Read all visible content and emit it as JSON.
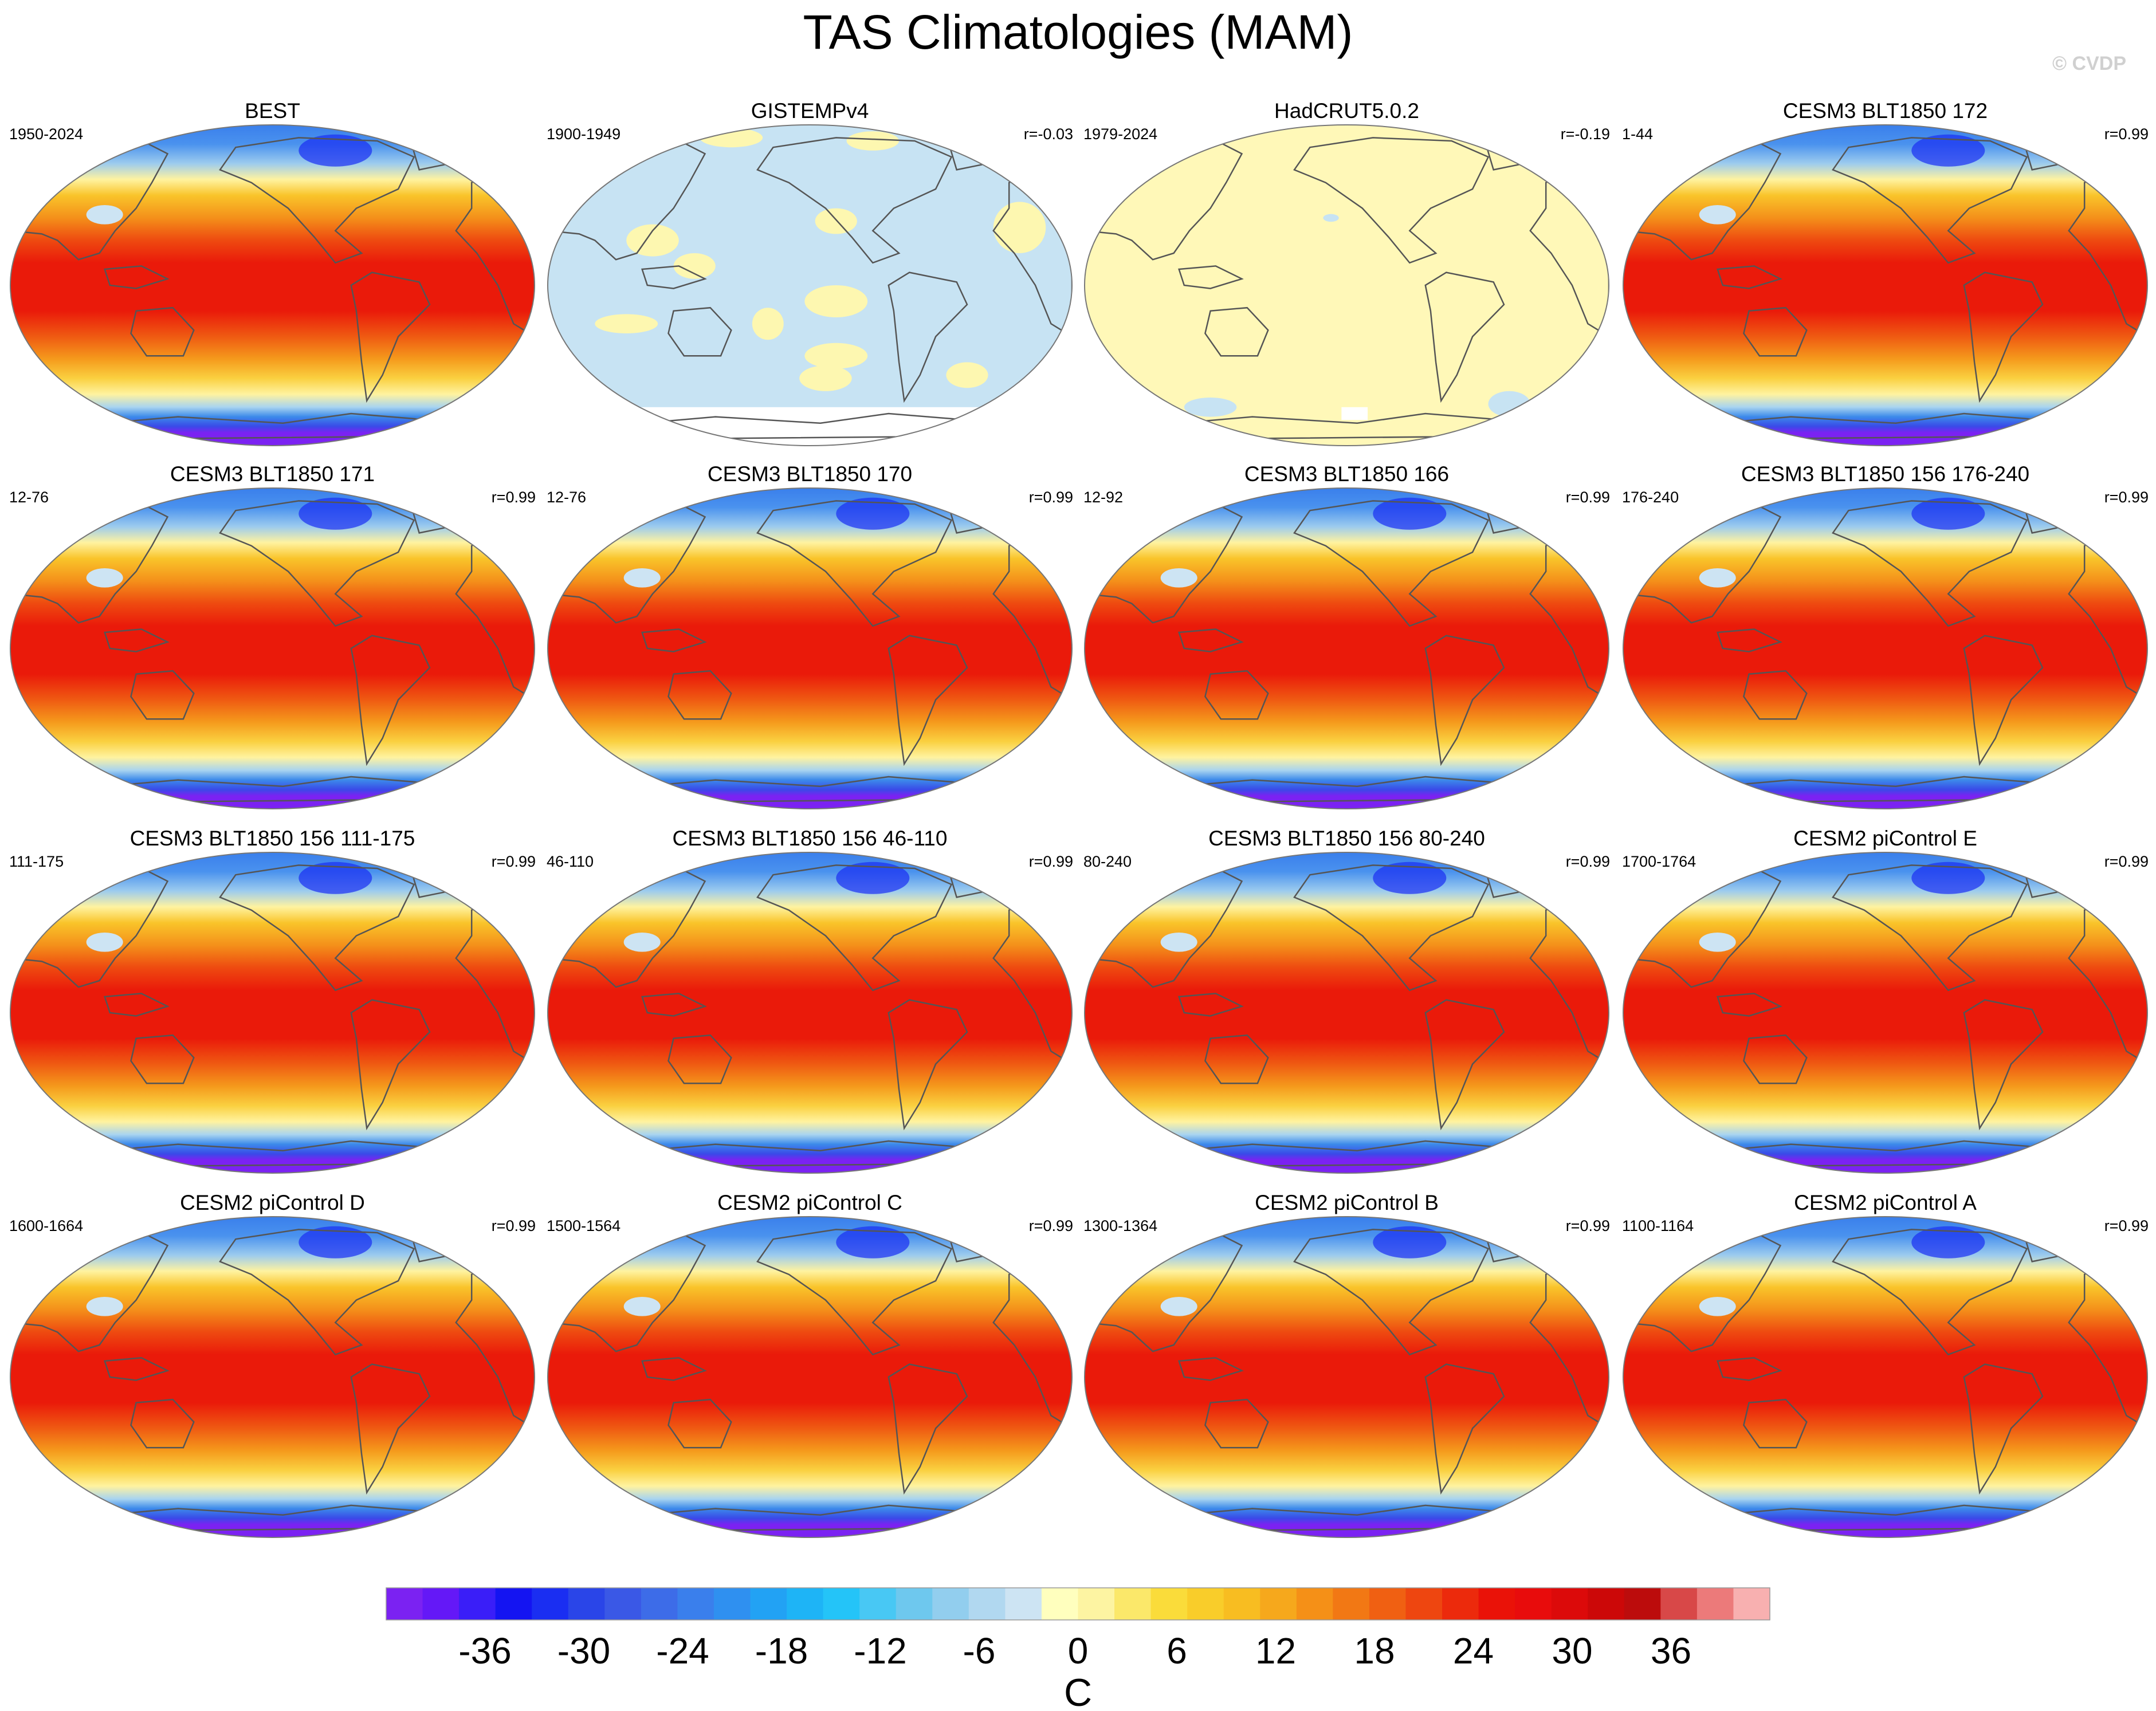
{
  "title": "TAS Climatologies (MAM)",
  "watermark": "© CVDP",
  "colors": {
    "land_outline": "#555555",
    "gistemp_blue": "#c7e3f3",
    "gistemp_yellow": "#fdf7b0",
    "hadcrut_yellow": "#fff8b8"
  },
  "chart_data": {
    "type": "heatmap",
    "projection": "robinson-global-pacific-centered",
    "panels": [
      {
        "title": "BEST",
        "period": "1950-2024",
        "r": "",
        "style": "climatology"
      },
      {
        "title": "GISTEMPv4",
        "period": "1900-1949",
        "r": "r=-0.03",
        "style": "gistemp"
      },
      {
        "title": "HadCRUT5.0.2",
        "period": "1979-2024",
        "r": "r=-0.19",
        "style": "hadcrut"
      },
      {
        "title": "CESM3 BLT1850 172",
        "period": "1-44",
        "r": "r=0.99",
        "style": "climatology"
      },
      {
        "title": "CESM3 BLT1850 171",
        "period": "12-76",
        "r": "r=0.99",
        "style": "climatology"
      },
      {
        "title": "CESM3 BLT1850 170",
        "period": "12-76",
        "r": "r=0.99",
        "style": "climatology"
      },
      {
        "title": "CESM3 BLT1850 166",
        "period": "12-92",
        "r": "r=0.99",
        "style": "climatology"
      },
      {
        "title": "CESM3 BLT1850 156 176-240",
        "period": "176-240",
        "r": "r=0.99",
        "style": "climatology"
      },
      {
        "title": "CESM3 BLT1850 156 111-175",
        "period": "111-175",
        "r": "r=0.99",
        "style": "climatology"
      },
      {
        "title": "CESM3 BLT1850 156 46-110",
        "period": "46-110",
        "r": "r=0.99",
        "style": "climatology"
      },
      {
        "title": "CESM3 BLT1850 156 80-240",
        "period": "80-240",
        "r": "r=0.99",
        "style": "climatology"
      },
      {
        "title": "CESM2 piControl E",
        "period": "1700-1764",
        "r": "r=0.99",
        "style": "climatology"
      },
      {
        "title": "CESM2 piControl D",
        "period": "1600-1664",
        "r": "r=0.99",
        "style": "climatology"
      },
      {
        "title": "CESM2 piControl C",
        "period": "1500-1564",
        "r": "r=0.99",
        "style": "climatology"
      },
      {
        "title": "CESM2 piControl B",
        "period": "1300-1364",
        "r": "r=0.99",
        "style": "climatology"
      },
      {
        "title": "CESM2 piControl A",
        "period": "1100-1164",
        "r": "r=0.99",
        "style": "climatology"
      }
    ],
    "colorbar": {
      "unit": "C",
      "tick_labels": [
        "-36",
        "-30",
        "-24",
        "-18",
        "-12",
        "-6",
        "0",
        "6",
        "12",
        "18",
        "24",
        "30",
        "36"
      ],
      "tick_values": [
        -36,
        -30,
        -24,
        -18,
        -12,
        -6,
        0,
        6,
        12,
        18,
        24,
        30,
        36
      ],
      "range": [
        -42,
        42
      ],
      "step": 2,
      "colors": [
        "#7b22f2",
        "#6418f7",
        "#3a1ef8",
        "#1414f2",
        "#1a2ef2",
        "#2a45e8",
        "#3a58e6",
        "#3d6ce8",
        "#3a7fec",
        "#2f90f0",
        "#22a2f4",
        "#1eb4f6",
        "#24c4f8",
        "#48c8f4",
        "#6ec8ee",
        "#92ceee",
        "#b1d8f0",
        "#cde4f3",
        "#ffffbe",
        "#fdf4a2",
        "#fbe86a",
        "#fadc3a",
        "#f9cd2a",
        "#f8bd21",
        "#f6a81c",
        "#f59017",
        "#f27814",
        "#f06012",
        "#ee4610",
        "#ec2a0c",
        "#ea1208",
        "#e80c0c",
        "#dc0a0a",
        "#cc0808",
        "#bc0c0c",
        "#d84848",
        "#ec7a7a",
        "#f8b0b0"
      ]
    }
  }
}
